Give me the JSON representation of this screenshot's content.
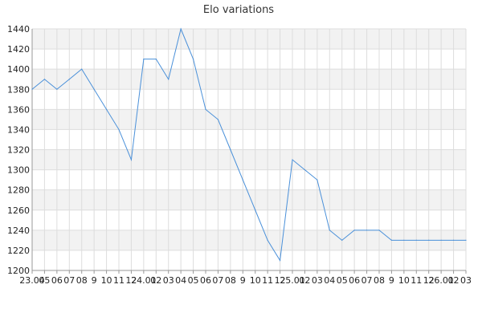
{
  "chart_data": {
    "type": "line",
    "title": "Elo variations",
    "xlabel": "",
    "ylabel": "",
    "ylim": [
      1200,
      1440
    ],
    "yticks": [
      1200,
      1220,
      1240,
      1260,
      1280,
      1300,
      1320,
      1340,
      1360,
      1380,
      1400,
      1420,
      1440
    ],
    "x_tick_labels": [
      "23.04",
      "05",
      "06",
      "07",
      "08",
      "9",
      "10",
      "11",
      "12",
      "24.01",
      "02",
      "03",
      "04",
      "05",
      "06",
      "07",
      "08",
      "9",
      "10",
      "11",
      "12",
      "25.01",
      "02",
      "03",
      "04",
      "05",
      "06",
      "07",
      "08",
      "9",
      "10",
      "11",
      "12",
      "26.01",
      "02",
      "03"
    ],
    "grid": true,
    "alternating_bands": true,
    "series": [
      {
        "values": [
          1380,
          1390,
          1380,
          1390,
          1400,
          1380,
          1360,
          1340,
          1310,
          1410,
          1410,
          1390,
          1440,
          1410,
          1360,
          1350,
          1320,
          1290,
          1260,
          1230,
          1210,
          1310,
          1300,
          1290,
          1240,
          1230,
          1240,
          1240,
          1240,
          1230,
          1230,
          1230,
          1230,
          1230,
          1230,
          1230
        ]
      }
    ],
    "colors": {
      "line": "#4a90d9",
      "grid": "#dddddd",
      "band": "#f2f2f2",
      "axis": "#999999"
    }
  }
}
